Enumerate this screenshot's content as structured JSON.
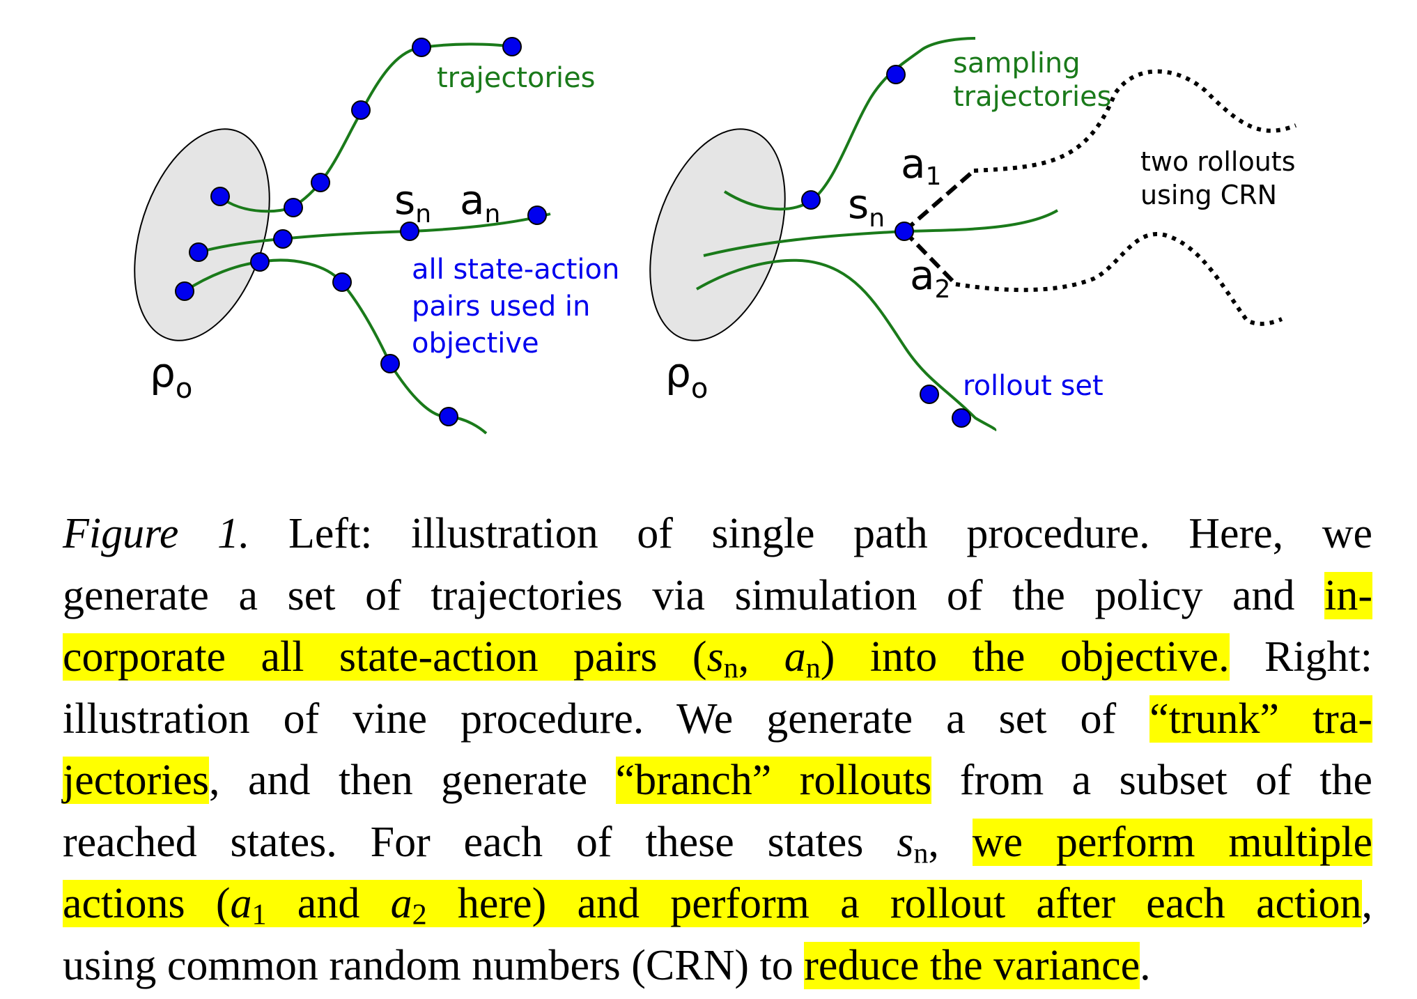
{
  "figure": {
    "left": {
      "labels": {
        "trajectories": "trajectories",
        "s_n": "s",
        "s_n_sub": "n",
        "a_n": "a",
        "a_n_sub": "n",
        "pairs_line1": "all state-action",
        "pairs_line2": "pairs used in",
        "pairs_line3": "objective",
        "rho": "ρ",
        "rho_sub": "o"
      }
    },
    "right": {
      "labels": {
        "sampling_line1": "sampling",
        "sampling_line2": "trajectories",
        "a1": "a",
        "a1_sub": "1",
        "a2": "a",
        "a2_sub": "2",
        "s_n": "s",
        "s_n_sub": "n",
        "rollouts_line1": "two rollouts",
        "rollouts_line2": "using CRN",
        "rollout_set": "rollout set",
        "rho": "ρ",
        "rho_sub": "o"
      }
    },
    "colors": {
      "trajectory": "#1a7a1a",
      "point": "#0000ee",
      "label_green": "#1a7a1a",
      "label_blue": "#0000ee",
      "ellipse_fill": "#e5e5e5"
    }
  },
  "caption": {
    "figure_label": "Figure 1.",
    "l1_a": " Left:  illustration of single path procedure.  Here, we",
    "l2_a": "generate a set of trajectories via simulation of the policy and ",
    "l2_hl": "in-",
    "l3_hl1": "corporate all state-action pairs (",
    "l3_s": "s",
    "l3_s_sub": "n",
    "l3_comma": ", ",
    "l3_a": "a",
    "l3_a_sub": "n",
    "l3_hl2": ") into the objective.",
    "l3_b": " Right:",
    "l4_a": "illustration of vine procedure.  We generate a set of ",
    "l4_hl": "“trunk” tra-",
    "l5_hl": "jectories",
    "l5_a": ", and then generate ",
    "l5_hl2": "“branch” rollouts",
    "l5_b": " from a subset of the",
    "l6_a": "reached states.  For each of these states ",
    "l6_s": "s",
    "l6_s_sub": "n",
    "l6_b": ", ",
    "l6_hl": "we perform multiple",
    "l7_hl1": "actions (",
    "l7_a1": "a",
    "l7_a1_sub": "1",
    "l7_and": " and ",
    "l7_a2": "a",
    "l7_a2_sub": "2",
    "l7_hl2": " here) and perform a rollout after each action",
    "l7_b": ",",
    "l8_a": "using common random numbers (CRN) to ",
    "l8_hl": "reduce the variance",
    "l8_b": "."
  }
}
